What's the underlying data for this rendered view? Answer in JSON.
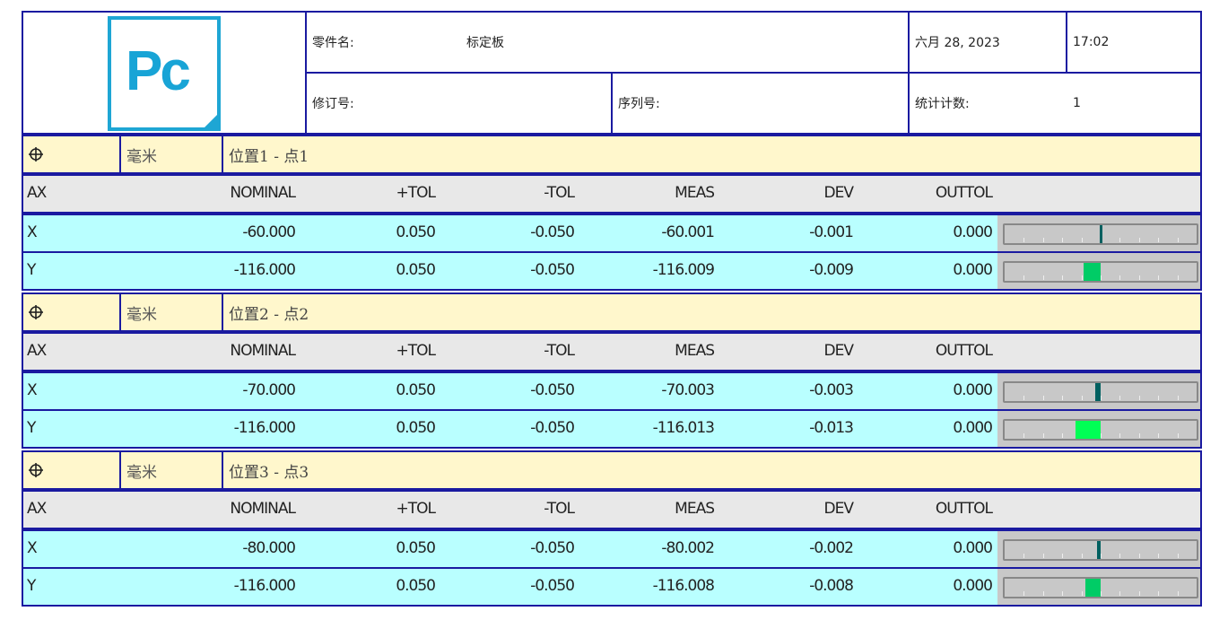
{
  "header": {
    "logo_text": "Pc",
    "part_name_label": "零件名:",
    "part_name_value": "标定板",
    "date": "六月 28, 2023",
    "time": "17:02",
    "revision_label": "修订号:",
    "revision_value": "",
    "serial_label": "序列号:",
    "serial_value": "",
    "stat_count_label": "统计计数:",
    "stat_count_value": "1"
  },
  "columns": [
    "AX",
    "NOMINAL",
    "+TOL",
    "-TOL",
    "MEAS",
    "DEV",
    "OUTTOL"
  ],
  "colors": {
    "border": "#1a1aa0",
    "feature_row": "#fff7cc",
    "header_row": "#e8e8e8",
    "data_row": "#b9ffff",
    "bar_bg": "#c8c8c8"
  },
  "sections": [
    {
      "icon": "position-crosshair-icon",
      "units": "毫米",
      "title": "位置1 - 点1",
      "rows": [
        {
          "ax": "X",
          "nominal": "-60.000",
          "plus_tol": "0.050",
          "minus_tol": "-0.050",
          "meas": "-60.001",
          "dev": "-0.001",
          "outtol": "0.000",
          "dev_value": -0.001,
          "bar_color": "#006060"
        },
        {
          "ax": "Y",
          "nominal": "-116.000",
          "plus_tol": "0.050",
          "minus_tol": "-0.050",
          "meas": "-116.009",
          "dev": "-0.009",
          "outtol": "0.000",
          "dev_value": -0.009,
          "bar_color": "#00cc66"
        }
      ]
    },
    {
      "icon": "position-crosshair-icon",
      "units": "毫米",
      "title": "位置2 - 点2",
      "rows": [
        {
          "ax": "X",
          "nominal": "-70.000",
          "plus_tol": "0.050",
          "minus_tol": "-0.050",
          "meas": "-70.003",
          "dev": "-0.003",
          "outtol": "0.000",
          "dev_value": -0.003,
          "bar_color": "#006060"
        },
        {
          "ax": "Y",
          "nominal": "-116.000",
          "plus_tol": "0.050",
          "minus_tol": "-0.050",
          "meas": "-116.013",
          "dev": "-0.013",
          "outtol": "0.000",
          "dev_value": -0.013,
          "bar_color": "#00ff55"
        }
      ]
    },
    {
      "icon": "position-crosshair-icon",
      "units": "毫米",
      "title": "位置3 - 点3",
      "rows": [
        {
          "ax": "X",
          "nominal": "-80.000",
          "plus_tol": "0.050",
          "minus_tol": "-0.050",
          "meas": "-80.002",
          "dev": "-0.002",
          "outtol": "0.000",
          "dev_value": -0.002,
          "bar_color": "#006060"
        },
        {
          "ax": "Y",
          "nominal": "-116.000",
          "plus_tol": "0.050",
          "minus_tol": "-0.050",
          "meas": "-116.008",
          "dev": "-0.008",
          "outtol": "0.000",
          "dev_value": -0.008,
          "bar_color": "#00cc66"
        }
      ]
    }
  ]
}
